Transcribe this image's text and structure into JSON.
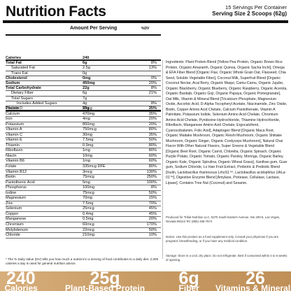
{
  "panel": {
    "title": "Nutrition Facts",
    "servings_per_container": "15 Servings Per Container",
    "serving_size": "Serving Size 2 Scoops (62g)",
    "amount_per_serving": "Amount Per Serving",
    "dv_header": "%DV"
  },
  "nutrients": [
    {
      "name": "Calories",
      "amount": "240",
      "dv": "",
      "style": "bold"
    },
    {
      "name": "Total Fat",
      "amount": "6g",
      "dv": "8%",
      "style": "bold"
    },
    {
      "name": "Saturated Fat",
      "amount": "2.5g",
      "dv": "13%",
      "style": "indent"
    },
    {
      "name": "Trans Fat",
      "amount": "0g",
      "dv": "",
      "style": "indent"
    },
    {
      "name": "Cholesterol",
      "amount": "0mg",
      "dv": "0%",
      "style": "bold"
    },
    {
      "name": "Sodium",
      "amount": "450mg",
      "dv": "20%",
      "style": "bold"
    },
    {
      "name": "Total Carbohydrate",
      "amount": "22g",
      "dv": "8%",
      "style": "bold"
    },
    {
      "name": "Dietary Fiber",
      "amount": "6g",
      "dv": "21%",
      "style": "indent"
    },
    {
      "name": "Total Sugars",
      "amount": "7g",
      "dv": "",
      "style": "indent"
    },
    {
      "name": "Includes Added Sugars",
      "amount": "4g",
      "dv": "8%",
      "style": "indent2"
    },
    {
      "name": "Protein",
      "amount": "25g",
      "dv": "35%",
      "style": "bold"
    }
  ],
  "vitamins": [
    {
      "name": "Vitamin D",
      "amount": "5mcg",
      "dv": "25%"
    },
    {
      "name": "Calcium",
      "amount": "470mg",
      "dv": "35%"
    },
    {
      "name": "Iron",
      "amount": "4mg",
      "dv": "20%"
    },
    {
      "name": "Potassium",
      "amount": "850mg",
      "dv": "20%"
    },
    {
      "name": "Vitamin A",
      "amount": "750mcg",
      "dv": "80%"
    },
    {
      "name": "Vitamin C",
      "amount": "30mg",
      "dv": "35%"
    },
    {
      "name": "Vitamin E",
      "amount": "7.5mg",
      "dv": "50%"
    },
    {
      "name": "Thiamin",
      "amount": "0.9mg",
      "dv": "80%"
    },
    {
      "name": "Riboflavin",
      "amount": "1mg",
      "dv": "80%"
    },
    {
      "name": "Niacin",
      "amount": "10mg",
      "dv": "60%"
    },
    {
      "name": "Vitamin B6",
      "amount": "1mg",
      "dv": "60%"
    },
    {
      "name": "Folate",
      "amount": "335mcg DFE",
      "dv": "80%"
    },
    {
      "name": "Vitamin B12",
      "amount": "3mcg",
      "dv": "130%"
    },
    {
      "name": "Biotin",
      "amount": "75mcg",
      "dv": "250%"
    },
    {
      "name": "Pantothenic Acid",
      "amount": "5mg",
      "dv": "100%"
    },
    {
      "name": "Phosphorus",
      "amount": "100mg",
      "dv": "8%"
    },
    {
      "name": "Iodine",
      "amount": "75mcg",
      "dv": "50%"
    },
    {
      "name": "Magnesium",
      "amount": "70mg",
      "dv": "15%"
    },
    {
      "name": "Zinc",
      "amount": "7.5mg",
      "dv": "70%"
    },
    {
      "name": "Selenium",
      "amount": "25mcg",
      "dv": "45%"
    },
    {
      "name": "Copper",
      "amount": "0.4mg",
      "dv": "45%"
    },
    {
      "name": "Manganese",
      "amount": "0.5mg",
      "dv": "20%"
    },
    {
      "name": "Chromium",
      "amount": "60mcg",
      "dv": "170%"
    },
    {
      "name": "Molybdenum",
      "amount": "22mcg",
      "dv": "50%"
    },
    {
      "name": "Chloride",
      "amount": "210mg",
      "dv": "10%"
    }
  ],
  "footnote": "* The % Daily Value (DV) tells you how much a nutrient in a serving of food contributes to a daily diet. 2,000 calories a day is used for general nutrition advice.",
  "ingredients": "Ingredients: Plant Protein Blend [Yellow Pea Protein, Organic Brown Rice Protein, Organic Amaranth, Organic Quinoa, Organic Sacha Inchi], Omega & EFA Fiber Blend [Organic Flax, Organic Whole Grain Oat, Flaxseed, Chia Seed, Soluble Vegetable Fiber], Coconut Milk, Superfruit Blend [Organic Coconut Nectar, Acai Berry, Organic Maqui, Camu-Camu, Organic Jujube, Organic Blackberry, Organic Blueberry, Organic Raspberry, Organic Acerola, Organic Baobab, Organic Goji, Organic Papaya, Organic Pomegranate], Oat Milk, Vitamin & Mineral Blend [Tricalcium Phosphate, Magnesium Oxide, Ascorbic Acid, D-Alpha-Tocopheryl Acetate, Niacinamide, Zinc Oxide, Biotin, Copper Amino Acid Chelate, Calcium Pantothenate, Vitamin A Palmitate, Potassium Iodide, Selenium Amino Acid Chelate, Chromium Amino Acid Chelate, Pyridoxine Hydrochloride, Thiamine Hydrochloride, Riboflavin, Manganese Amino Acid Chelate, Ergocalciferol, Cyanocobalamin, Folic Acid], Adaptogen Blend [Organic Maca Root, Organic Maitake Mushroom, Organic Reishi Mushroom, Organic Shiitake Mushroom, Organic Ginger, Organic Cordyceps Mushroom], Natural Chai Flavor With Other Natural Flavors, Super Greens & Vegetable Blend [Organic Beet Root, Organic Carrot, Chlorella, Organic Spinach, Organic Purple Potato, Organic Tomato, Organic Parsley, Moringa, Organic Barley, Organic Kale, Organic Spirulina, Organic Wheat Grass], Xanthan gum, Guar gum, Sodium Chloride, Lo Han Fruit Extract, Probiotic & Prebiotic Blend [Inulin, Lactobacillus rhamnosus LrhoS1™, Lactobacillus acidophilus UALa-01™], Digestive Enzyme Blend [Amylase, Protease, Cellulase, Lactase, Lipase]. Contains Tree Nut (Coconut) and Sesame.",
  "producer": "Produced for Tribal Nutrition LLC, 8275 South Eastern Avenue, Ste 200-5, Las Vegas, Nevada 89123 Tel: (855) 468-7574",
  "notice": "Notice: Use this product as a food supplement only. Consult your physician if you are pregnant, breastfeeding, or if you have any medical condition.",
  "storage": "Storage: Store in a cool, dry place. Do not refrigerate. Best if consumed within 4 to 6 weeks of opening.",
  "banner": {
    "stats": [
      {
        "value": "240",
        "label": "Calories"
      },
      {
        "value": "25g",
        "label": "Plant-Based Protein"
      },
      {
        "value": "6g",
        "label": "Fiber"
      },
      {
        "value": "26",
        "label": "Vitamins & Minerals"
      }
    ]
  }
}
